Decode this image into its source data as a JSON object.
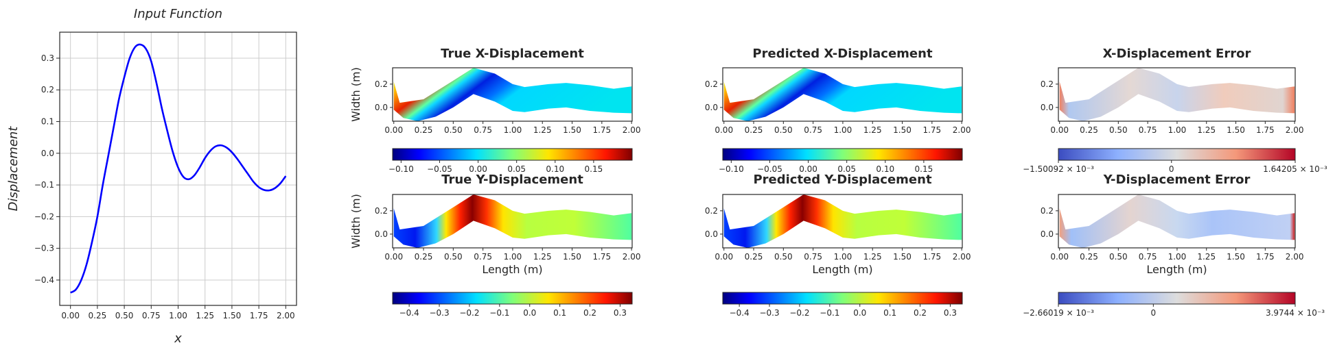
{
  "chart_data": [
    {
      "type": "line",
      "title": "Input Function",
      "xlabel": "x",
      "ylabel": "Displacement",
      "xlim": [
        -0.1,
        2.1
      ],
      "ylim": [
        -0.48,
        0.382
      ],
      "grid": true,
      "color": "#0000ff",
      "xticks": [
        0,
        0.25,
        0.5,
        0.75,
        1.0,
        1.25,
        1.5,
        1.75,
        2.0
      ],
      "xtick_labels": [
        "0.00",
        "0.25",
        "0.50",
        "0.75",
        "1.00",
        "1.25",
        "1.50",
        "1.75",
        "2.00"
      ],
      "yticks": [
        -0.4,
        -0.3,
        -0.2,
        -0.1,
        0.0,
        0.1,
        0.2,
        0.3
      ],
      "ytick_labels": [
        "−0.4",
        "−0.3",
        "−0.2",
        "−0.1",
        "0.0",
        "0.1",
        "0.2",
        "0.3"
      ],
      "x": [
        0,
        0.05,
        0.1,
        0.15,
        0.2,
        0.25,
        0.3,
        0.35,
        0.4,
        0.45,
        0.5,
        0.55,
        0.6,
        0.65,
        0.7,
        0.75,
        0.8,
        0.85,
        0.9,
        0.95,
        1.0,
        1.05,
        1.1,
        1.15,
        1.2,
        1.25,
        1.3,
        1.35,
        1.4,
        1.45,
        1.5,
        1.55,
        1.6,
        1.65,
        1.7,
        1.75,
        1.8,
        1.85,
        1.9,
        1.95,
        2.0
      ],
      "y": [
        -0.44,
        -0.43,
        -0.4,
        -0.35,
        -0.28,
        -0.2,
        -0.1,
        -0.01,
        0.08,
        0.17,
        0.24,
        0.3,
        0.335,
        0.343,
        0.33,
        0.29,
        0.22,
        0.14,
        0.07,
        0.005,
        -0.045,
        -0.075,
        -0.082,
        -0.07,
        -0.045,
        -0.015,
        0.008,
        0.022,
        0.025,
        0.018,
        0.003,
        -0.018,
        -0.042,
        -0.066,
        -0.09,
        -0.107,
        -0.116,
        -0.117,
        -0.11,
        -0.095,
        -0.072
      ]
    },
    {
      "type": "heatmap",
      "title": "True X-Displacement",
      "ylabel": "Width (m)",
      "xlabel": "",
      "cmap": "jet",
      "colorbar": {
        "min": -0.111,
        "max": 0.2,
        "ticks": [
          -0.1,
          -0.05,
          0.0,
          0.05,
          0.1,
          0.15
        ],
        "labels": [
          "−0.10",
          "−0.05",
          "0.00",
          "0.05",
          "0.10",
          "0.15"
        ]
      }
    },
    {
      "type": "heatmap",
      "title": "Predicted X-Displacement",
      "ylabel": "",
      "xlabel": "",
      "cmap": "jet",
      "colorbar": {
        "min": -0.111,
        "max": 0.2,
        "ticks": [
          -0.1,
          -0.05,
          0.0,
          0.05,
          0.1,
          0.15
        ],
        "labels": [
          "−0.10",
          "−0.05",
          "0.00",
          "0.05",
          "0.10",
          "0.15"
        ]
      }
    },
    {
      "type": "heatmap",
      "title": "X-Displacement Error",
      "ylabel": "",
      "xlabel": "",
      "cmap": "coolwarm",
      "colorbar": {
        "min": -0.00150092,
        "max": 0.00164205,
        "ticks": [
          -0.00150092,
          0,
          0.00164205
        ],
        "labels": [
          "−1.50092 × 10⁻³",
          "0",
          "1.64205 × 10⁻³"
        ]
      }
    },
    {
      "type": "heatmap",
      "title": "True Y-Displacement",
      "ylabel": "Width (m)",
      "xlabel": "Length (m)",
      "cmap": "jet",
      "colorbar": {
        "min": -0.455,
        "max": 0.34,
        "ticks": [
          -0.4,
          -0.3,
          -0.2,
          -0.1,
          0.0,
          0.1,
          0.2,
          0.3
        ],
        "labels": [
          "−0.4",
          "−0.3",
          "−0.2",
          "−0.1",
          "0.0",
          "0.1",
          "0.2",
          "0.3"
        ]
      }
    },
    {
      "type": "heatmap",
      "title": "Predicted Y-Displacement",
      "ylabel": "",
      "xlabel": "Length (m)",
      "cmap": "jet",
      "colorbar": {
        "min": -0.455,
        "max": 0.34,
        "ticks": [
          -0.4,
          -0.3,
          -0.2,
          -0.1,
          0.0,
          0.1,
          0.2,
          0.3
        ],
        "labels": [
          "−0.4",
          "−0.3",
          "−0.2",
          "−0.1",
          "0.0",
          "0.1",
          "0.2",
          "0.3"
        ]
      }
    },
    {
      "type": "heatmap",
      "title": "Y-Displacement Error",
      "ylabel": "",
      "xlabel": "Length (m)",
      "cmap": "coolwarm",
      "colorbar": {
        "min": -0.00266019,
        "max": 0.0039744,
        "ticks": [
          -0.00266019,
          0,
          0.0039744
        ],
        "labels": [
          "−2.66019 × 10⁻³",
          "0",
          "3.9744 × 10⁻³"
        ]
      }
    }
  ],
  "field_axes": {
    "xlim": [
      -0.01,
      2.005
    ],
    "ylim": [
      -0.118,
      0.34
    ],
    "xticks": [
      0,
      0.25,
      0.5,
      0.75,
      1.0,
      1.25,
      1.5,
      1.75,
      2.0
    ],
    "xtick_labels": [
      "0.00",
      "0.25",
      "0.50",
      "0.75",
      "1.00",
      "1.25",
      "1.50",
      "1.75",
      "2.00"
    ],
    "yticks": [
      0.0,
      0.2
    ],
    "ytick_labels": [
      "0.0",
      "0.2"
    ]
  }
}
